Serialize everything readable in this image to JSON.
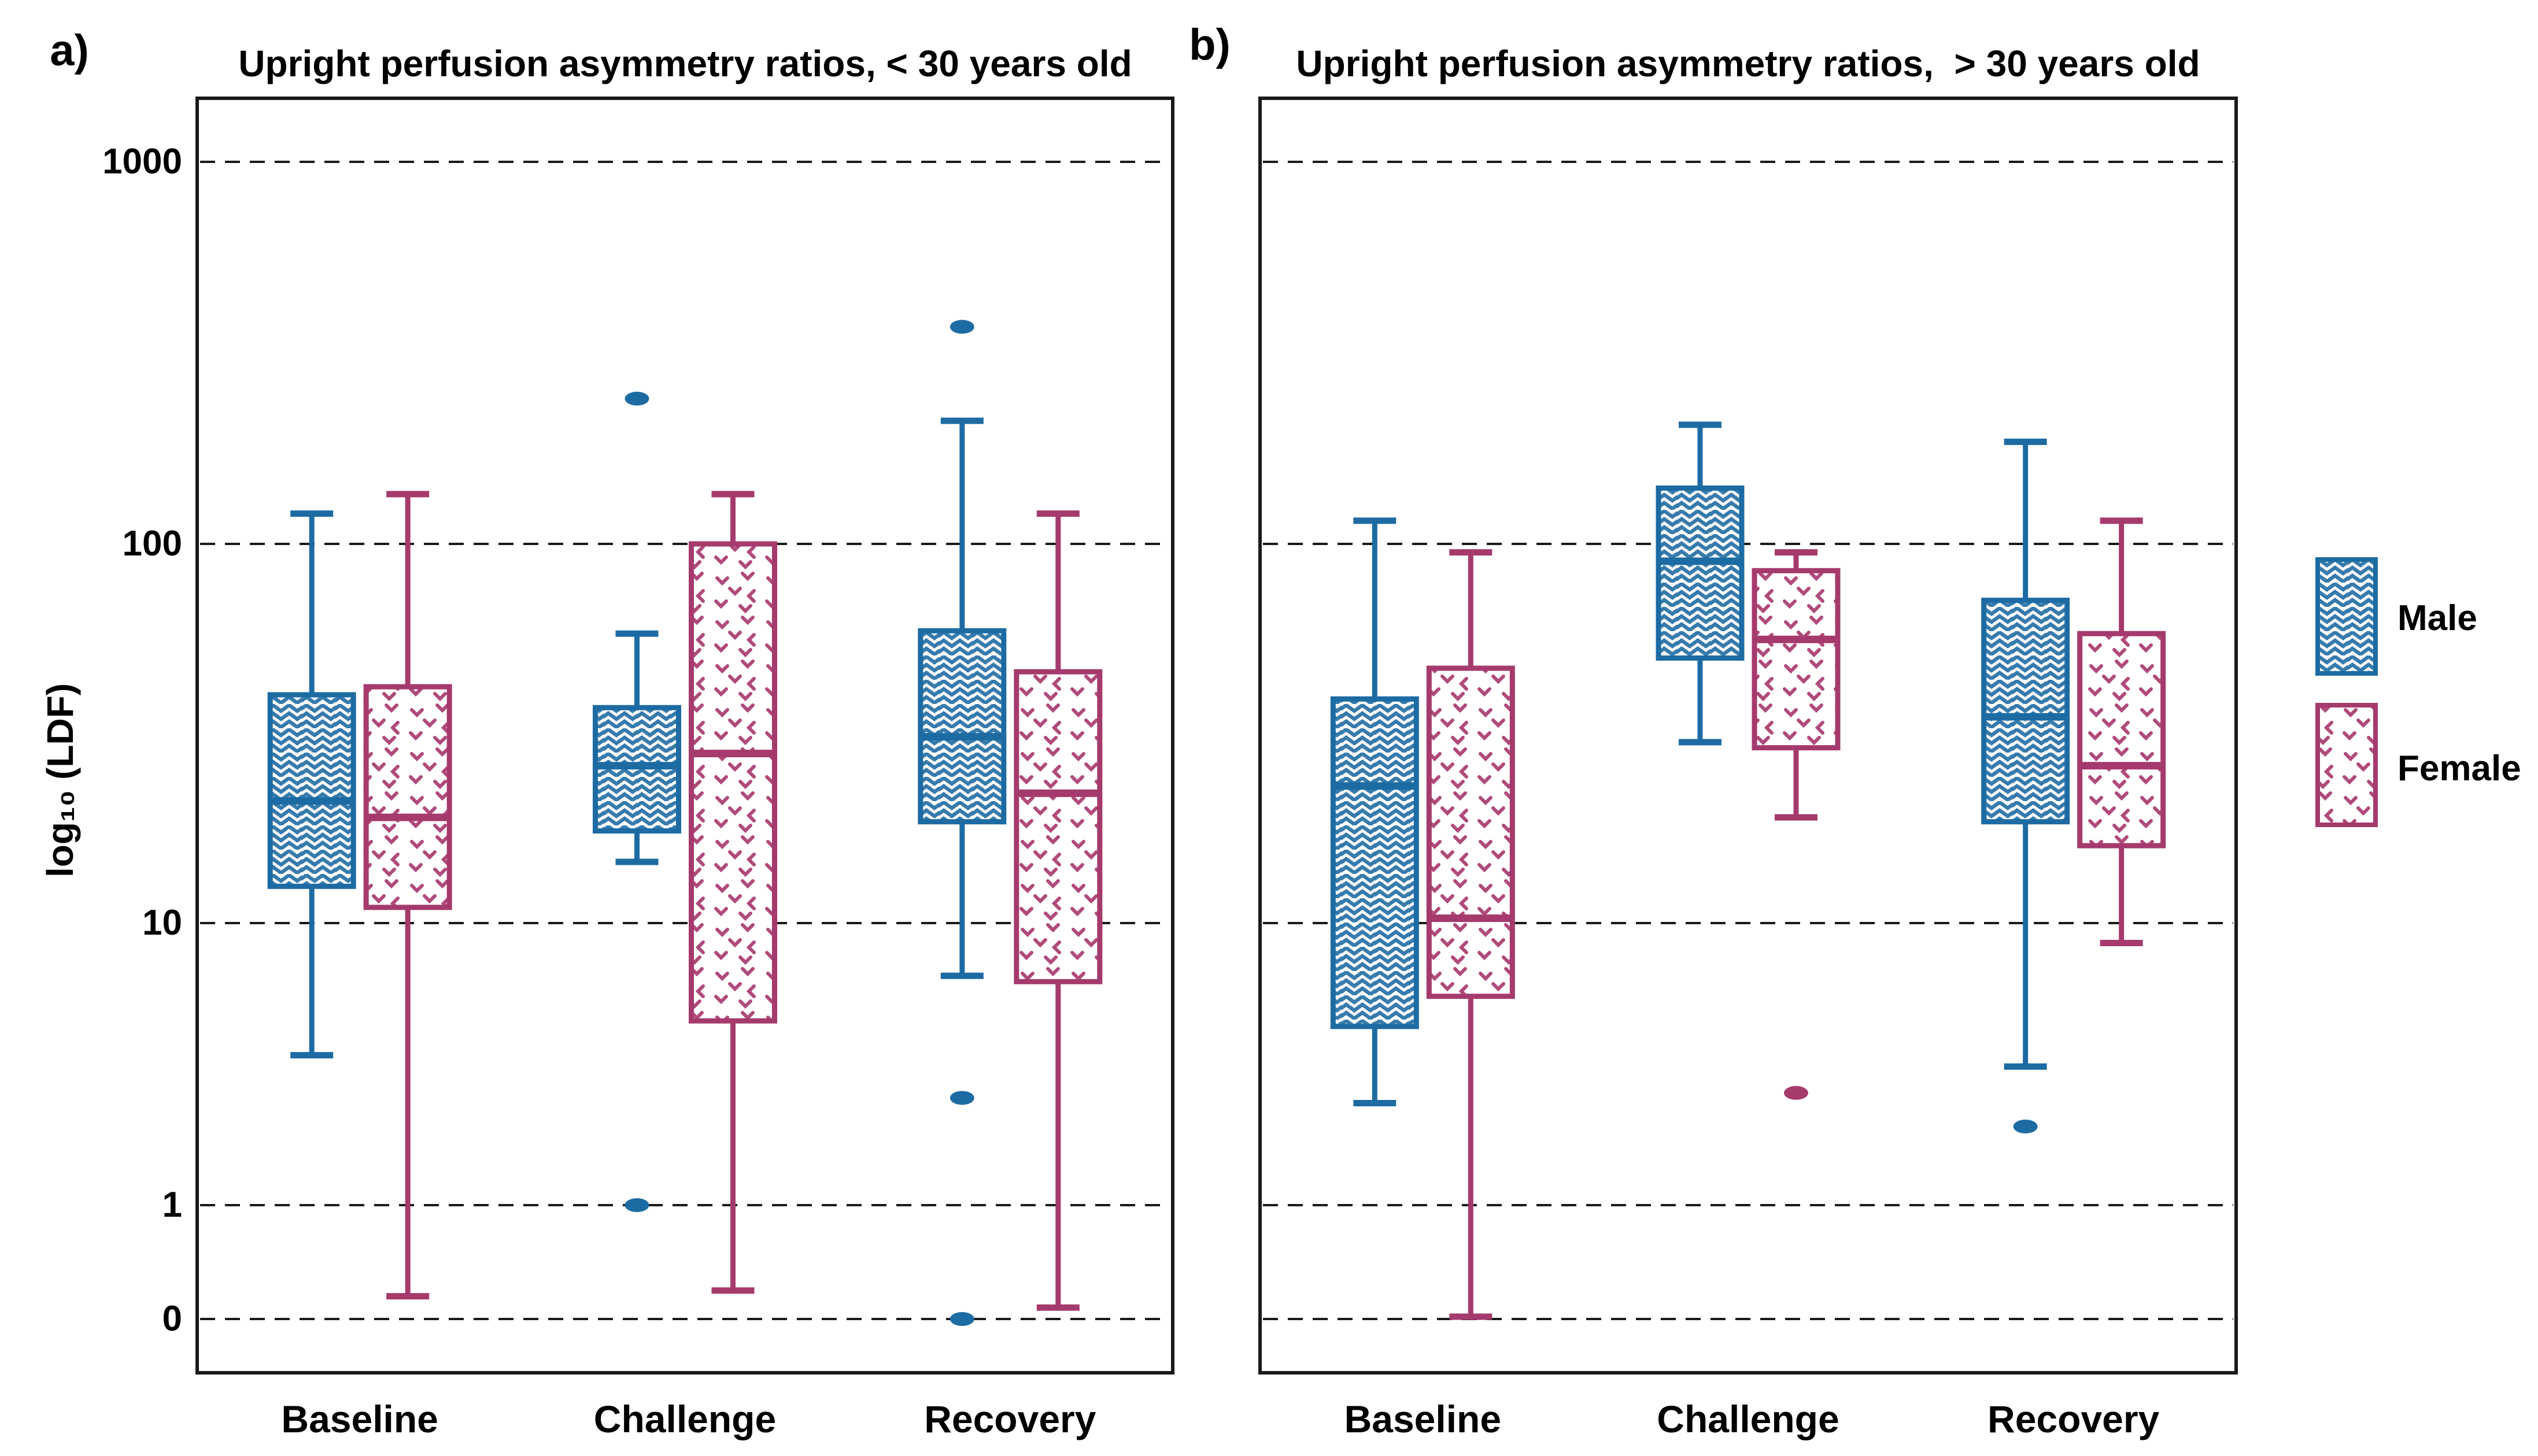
{
  "yaxis": {
    "label": "log₁₀ (LDF)",
    "tick_labels": [
      "1000",
      "100",
      "10",
      "1",
      "0"
    ]
  },
  "legend": {
    "position": "right",
    "items": [
      {
        "label": "Male",
        "color": "#1d6ba3",
        "pattern": "zigzag-weave-hatch"
      },
      {
        "label": "Female",
        "color": "#a53a6d",
        "pattern": "chevron-dots"
      }
    ]
  },
  "chart_data": [
    {
      "type": "boxplot",
      "panel_tag": "a)",
      "title": "Upright perfusion asymmetry ratios, < 30 years old",
      "ylabel": "log₁₀ (LDF)",
      "yticks": [
        1000,
        100,
        10,
        1,
        0
      ],
      "grid": "horizontal-dashed",
      "legend_position": "right",
      "categories": [
        "Baseline",
        "Challenge",
        "Recovery"
      ],
      "series": [
        {
          "name": "Male",
          "color": "#1d6ba3",
          "boxes": [
            {
              "category": "Baseline",
              "whisker_low": 3.4,
              "q1": 12.5,
              "median": 21,
              "q3": 40,
              "whisker_high": 120,
              "outliers": []
            },
            {
              "category": "Challenge",
              "whisker_low": 14.5,
              "q1": 17.5,
              "median": 26,
              "q3": 37,
              "whisker_high": 58,
              "outliers": [
                240,
                1
              ]
            },
            {
              "category": "Recovery",
              "whisker_low": 6.5,
              "q1": 18.5,
              "median": 31,
              "q3": 59,
              "whisker_high": 210,
              "outliers": [
                370,
                2.4,
                0
              ]
            }
          ]
        },
        {
          "name": "Female",
          "color": "#a53a6d",
          "boxes": [
            {
              "category": "Baseline",
              "whisker_low": 0.2,
              "q1": 11,
              "median": 19,
              "q3": 42,
              "whisker_high": 135,
              "outliers": []
            },
            {
              "category": "Challenge",
              "whisker_low": 0.25,
              "q1": 4.5,
              "median": 28,
              "q3": 100,
              "whisker_high": 135,
              "outliers": []
            },
            {
              "category": "Recovery",
              "whisker_low": 0.1,
              "q1": 6.2,
              "median": 22,
              "q3": 46,
              "whisker_high": 120,
              "outliers": []
            }
          ]
        }
      ]
    },
    {
      "type": "boxplot",
      "panel_tag": "b)",
      "title": "Upright perfusion asymmetry ratios,  > 30 years old",
      "ylabel": "log₁₀ (LDF)",
      "yticks": [
        1000,
        100,
        10,
        1,
        0
      ],
      "grid": "horizontal-dashed",
      "legend_position": "right",
      "categories": [
        "Baseline",
        "Challenge",
        "Recovery"
      ],
      "series": [
        {
          "name": "Male",
          "color": "#1d6ba3",
          "boxes": [
            {
              "category": "Baseline",
              "whisker_low": 2.3,
              "q1": 4.3,
              "median": 23,
              "q3": 39,
              "whisker_high": 115,
              "outliers": []
            },
            {
              "category": "Challenge",
              "whisker_low": 30,
              "q1": 50,
              "median": 90,
              "q3": 140,
              "whisker_high": 205,
              "outliers": []
            },
            {
              "category": "Recovery",
              "whisker_low": 3.1,
              "q1": 18.5,
              "median": 35,
              "q3": 71,
              "whisker_high": 185,
              "outliers": [
                1.9
              ]
            }
          ]
        },
        {
          "name": "Female",
          "color": "#a53a6d",
          "boxes": [
            {
              "category": "Baseline",
              "whisker_low": 0.02,
              "q1": 5.5,
              "median": 10.3,
              "q3": 47,
              "whisker_high": 95,
              "outliers": []
            },
            {
              "category": "Challenge",
              "whisker_low": 19,
              "q1": 29,
              "median": 56,
              "q3": 85,
              "whisker_high": 95,
              "outliers": [
                2.5
              ]
            },
            {
              "category": "Recovery",
              "whisker_low": 8.5,
              "q1": 16,
              "median": 26,
              "q3": 58,
              "whisker_high": 115,
              "outliers": []
            }
          ]
        }
      ]
    }
  ]
}
